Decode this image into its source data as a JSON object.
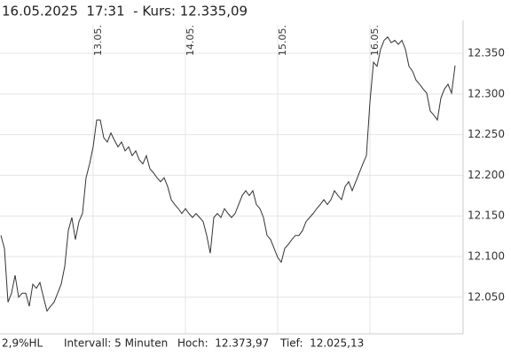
{
  "chart_data": {
    "type": "line",
    "title": "16.05.2025  17:31  - Kurs: 12.335,09",
    "footer": [
      "2,9%HL",
      "Intervall: 5 Minuten",
      "Hoch:  12.373,97",
      "Tief:  12.025,13"
    ],
    "color": "#333333",
    "grid": true,
    "categories": [
      null,
      null,
      null,
      null,
      null,
      null,
      null,
      null,
      null,
      null,
      null,
      null,
      null,
      null,
      null,
      null,
      null,
      null,
      null,
      null,
      null,
      null,
      null,
      null,
      null,
      null,
      "13.05.",
      null,
      null,
      null,
      null,
      null,
      null,
      null,
      null,
      null,
      null,
      null,
      null,
      null,
      null,
      null,
      null,
      null,
      null,
      null,
      null,
      null,
      null,
      null,
      null,
      null,
      "14.05.",
      null,
      null,
      null,
      null,
      null,
      null,
      null,
      null,
      null,
      null,
      null,
      null,
      null,
      null,
      null,
      null,
      null,
      null,
      null,
      null,
      null,
      null,
      null,
      null,
      null,
      "15.05.",
      null,
      null,
      null,
      null,
      null,
      null,
      null,
      null,
      null,
      null,
      null,
      null,
      null,
      null,
      null,
      null,
      null,
      null,
      null,
      null,
      null,
      null,
      null,
      null,
      null,
      "16.05.",
      null,
      null,
      null,
      null,
      null,
      null,
      null,
      null,
      null,
      null,
      null,
      null,
      null,
      null,
      null,
      null,
      null,
      null,
      null,
      null,
      null,
      null,
      null,
      null
    ],
    "values": [
      12126,
      12110,
      12044,
      12055,
      12077,
      12050,
      12055,
      12055,
      12039,
      12066,
      12061,
      12068,
      12050,
      12033,
      12039,
      12044,
      12055,
      12066,
      12088,
      12132,
      12148,
      12121,
      12143,
      12153,
      12197,
      12214,
      12235,
      12268,
      12268,
      12246,
      12241,
      12252,
      12243,
      12235,
      12241,
      12230,
      12235,
      12224,
      12230,
      12219,
      12214,
      12224,
      12208,
      12203,
      12197,
      12192,
      12197,
      12186,
      12170,
      12164,
      12159,
      12153,
      12159,
      12153,
      12148,
      12153,
      12148,
      12143,
      12126,
      12104,
      12148,
      12153,
      12148,
      12159,
      12153,
      12148,
      12153,
      12164,
      12175,
      12181,
      12175,
      12181,
      12164,
      12159,
      12148,
      12126,
      12121,
      12110,
      12099,
      12093,
      12110,
      12115,
      12121,
      12126,
      12126,
      12132,
      12143,
      12148,
      12153,
      12159,
      12164,
      12170,
      12164,
      12170,
      12181,
      12175,
      12170,
      12186,
      12192,
      12181,
      12192,
      12203,
      12214,
      12224,
      12290,
      12339,
      12334,
      12355,
      12366,
      12370,
      12363,
      12366,
      12361,
      12366,
      12355,
      12334,
      12328,
      12317,
      12312,
      12306,
      12301,
      12279,
      12274,
      12268,
      12295,
      12306,
      12312,
      12301,
      12335
    ],
    "ylim": [
      12005,
      12385
    ],
    "yticks": [
      {
        "value": 12050,
        "label": "12.050"
      },
      {
        "value": 12100,
        "label": "12.100"
      },
      {
        "value": 12150,
        "label": "12.150"
      },
      {
        "value": 12200,
        "label": "12.200"
      },
      {
        "value": 12250,
        "label": "12.250"
      },
      {
        "value": 12300,
        "label": "12.300"
      },
      {
        "value": 12350,
        "label": "12.350"
      }
    ]
  }
}
